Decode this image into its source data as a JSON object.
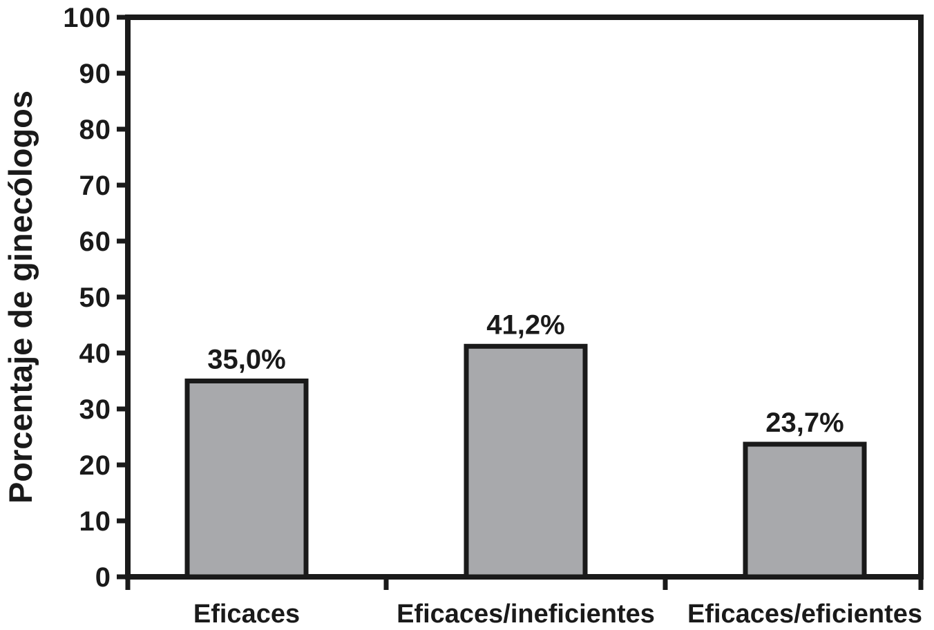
{
  "chart_data": {
    "type": "bar",
    "title": "",
    "xlabel": "",
    "ylabel": "Porcentaje de ginecólogos",
    "categories": [
      "Eficaces",
      "Eficaces/ineficientes",
      "Eficaces/eficientes"
    ],
    "values": [
      35.0,
      41.2,
      23.7
    ],
    "value_labels": [
      "35,0%",
      "41,2%",
      "23,7%"
    ],
    "ylim": [
      0,
      100
    ],
    "ytick_interval": 10,
    "ytick_labels": [
      "0",
      "10",
      "20",
      "30",
      "40",
      "50",
      "60",
      "70",
      "80",
      "90",
      "100"
    ],
    "grid": false,
    "legend": null,
    "frame": true,
    "colors": {
      "bar_fill": "#a8a9ac",
      "bar_stroke": "#1a1a1a",
      "axis": "#1a1a1a",
      "text": "#1a1a1a",
      "background": "#ffffff"
    }
  }
}
